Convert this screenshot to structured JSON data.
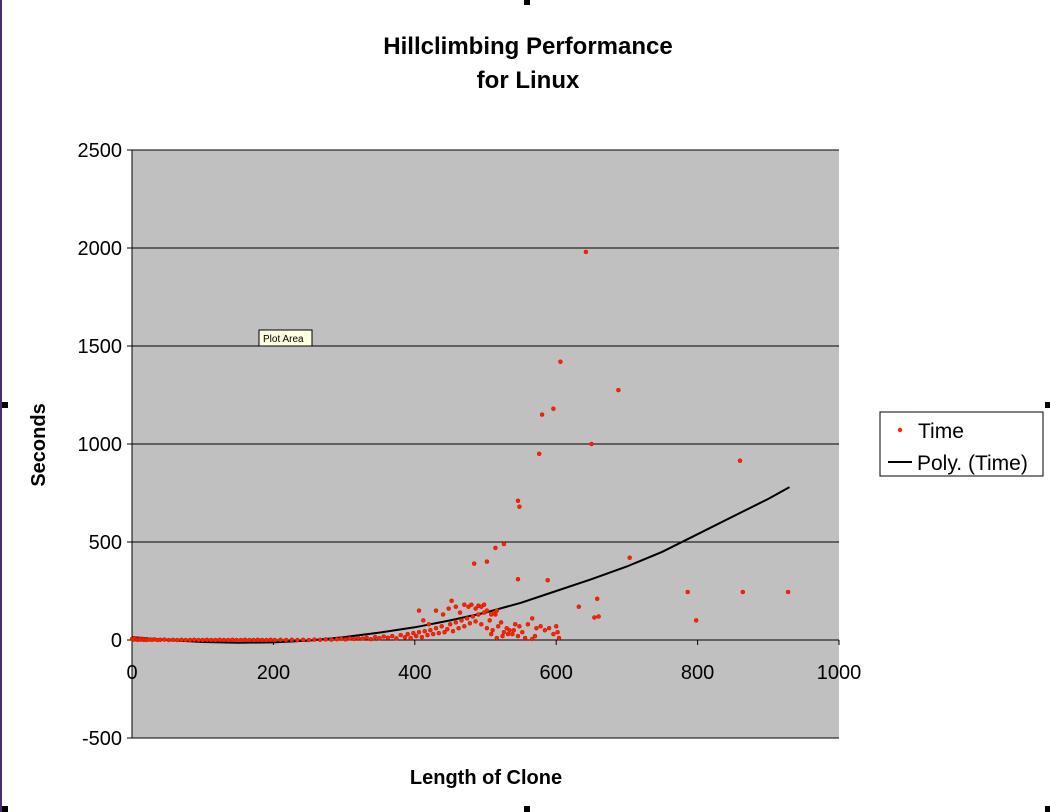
{
  "chart_data": {
    "type": "scatter",
    "title": [
      "Hillclimbing Performance",
      "for Linux"
    ],
    "xlabel": "Length of Clone",
    "ylabel": "Seconds",
    "xlim": [
      0,
      1000
    ],
    "ylim": [
      -500,
      2500
    ],
    "xticks": [
      "0",
      "200",
      "400",
      "600",
      "800",
      "1000"
    ],
    "yticks": [
      "-500",
      "0",
      "500",
      "1000",
      "1500",
      "2000",
      "2500"
    ],
    "grid": "horizontal",
    "plot_background": "#c0c0c0",
    "legend_position": "right",
    "tooltip": "Plot Area",
    "series": [
      {
        "name": "Time",
        "kind": "scatter",
        "color": "#ff2200",
        "points": [
          [
            0,
            5
          ],
          [
            2,
            2
          ],
          [
            4,
            8
          ],
          [
            6,
            3
          ],
          [
            8,
            1
          ],
          [
            10,
            4
          ],
          [
            12,
            2
          ],
          [
            14,
            6
          ],
          [
            16,
            1
          ],
          [
            18,
            3
          ],
          [
            20,
            0
          ],
          [
            24,
            2
          ],
          [
            28,
            1
          ],
          [
            32,
            3
          ],
          [
            36,
            0
          ],
          [
            40,
            1
          ],
          [
            46,
            2
          ],
          [
            52,
            0
          ],
          [
            58,
            1
          ],
          [
            64,
            0
          ],
          [
            70,
            1
          ],
          [
            76,
            0
          ],
          [
            82,
            0
          ],
          [
            88,
            1
          ],
          [
            94,
            0
          ],
          [
            100,
            0
          ],
          [
            106,
            1
          ],
          [
            112,
            0
          ],
          [
            118,
            0
          ],
          [
            124,
            1
          ],
          [
            130,
            0
          ],
          [
            136,
            0
          ],
          [
            142,
            1
          ],
          [
            148,
            0
          ],
          [
            154,
            0
          ],
          [
            160,
            1
          ],
          [
            166,
            0
          ],
          [
            172,
            0
          ],
          [
            178,
            1
          ],
          [
            184,
            0
          ],
          [
            190,
            0
          ],
          [
            196,
            1
          ],
          [
            202,
            0
          ],
          [
            210,
            1
          ],
          [
            218,
            0
          ],
          [
            226,
            1
          ],
          [
            234,
            0
          ],
          [
            242,
            1
          ],
          [
            250,
            0
          ],
          [
            258,
            2
          ],
          [
            266,
            1
          ],
          [
            274,
            3
          ],
          [
            282,
            2
          ],
          [
            290,
            4
          ],
          [
            296,
            6
          ],
          [
            302,
            3
          ],
          [
            308,
            8
          ],
          [
            314,
            5
          ],
          [
            320,
            10
          ],
          [
            326,
            7
          ],
          [
            332,
            12
          ],
          [
            338,
            4
          ],
          [
            344,
            15
          ],
          [
            350,
            9
          ],
          [
            356,
            18
          ],
          [
            362,
            11
          ],
          [
            368,
            20
          ],
          [
            374,
            8
          ],
          [
            380,
            25
          ],
          [
            386,
            14
          ],
          [
            390,
            30
          ],
          [
            394,
            10
          ],
          [
            398,
            35
          ],
          [
            402,
            20
          ],
          [
            406,
            40
          ],
          [
            410,
            15
          ],
          [
            414,
            45
          ],
          [
            418,
            25
          ],
          [
            422,
            50
          ],
          [
            426,
            30
          ],
          [
            430,
            60
          ],
          [
            434,
            35
          ],
          [
            438,
            70
          ],
          [
            442,
            40
          ],
          [
            446,
            55
          ],
          [
            450,
            80
          ],
          [
            454,
            45
          ],
          [
            458,
            90
          ],
          [
            462,
            60
          ],
          [
            466,
            100
          ],
          [
            470,
            70
          ],
          [
            474,
            110
          ],
          [
            478,
            85
          ],
          [
            482,
            120
          ],
          [
            486,
            95
          ],
          [
            490,
            130
          ],
          [
            494,
            80
          ],
          [
            498,
            140
          ],
          [
            502,
            60
          ],
          [
            506,
            100
          ],
          [
            510,
            50
          ],
          [
            514,
            130
          ],
          [
            518,
            70
          ],
          [
            522,
            90
          ],
          [
            526,
            40
          ],
          [
            530,
            60
          ],
          [
            534,
            50
          ],
          [
            538,
            30
          ],
          [
            542,
            80
          ],
          [
            546,
            20
          ],
          [
            406,
            150
          ],
          [
            412,
            100
          ],
          [
            420,
            80
          ],
          [
            430,
            150
          ],
          [
            440,
            130
          ],
          [
            448,
            160
          ],
          [
            452,
            200
          ],
          [
            458,
            170
          ],
          [
            464,
            140
          ],
          [
            470,
            180
          ],
          [
            476,
            170
          ],
          [
            480,
            180
          ],
          [
            486,
            160
          ],
          [
            490,
            175
          ],
          [
            494,
            170
          ],
          [
            498,
            180
          ],
          [
            502,
            150
          ],
          [
            508,
            130
          ],
          [
            512,
            140
          ],
          [
            516,
            150
          ],
          [
            484,
            390
          ],
          [
            502,
            400
          ],
          [
            514,
            470
          ],
          [
            526,
            490
          ],
          [
            546,
            310
          ],
          [
            546,
            710
          ],
          [
            548,
            680
          ],
          [
            576,
            950
          ],
          [
            580,
            1150
          ],
          [
            588,
            305
          ],
          [
            596,
            1180
          ],
          [
            606,
            1420
          ],
          [
            632,
            170
          ],
          [
            642,
            1980
          ],
          [
            650,
            1000
          ],
          [
            654,
            115
          ],
          [
            658,
            210
          ],
          [
            660,
            120
          ],
          [
            688,
            1275
          ],
          [
            704,
            420
          ],
          [
            786,
            245
          ],
          [
            798,
            100
          ],
          [
            860,
            915
          ],
          [
            864,
            245
          ],
          [
            928,
            245
          ],
          [
            560,
            80
          ],
          [
            566,
            110
          ],
          [
            572,
            60
          ],
          [
            578,
            70
          ],
          [
            584,
            50
          ],
          [
            590,
            60
          ],
          [
            596,
            30
          ],
          [
            600,
            70
          ],
          [
            602,
            40
          ],
          [
            604,
            10
          ],
          [
            570,
            20
          ],
          [
            566,
            5
          ],
          [
            552,
            40
          ],
          [
            556,
            10
          ],
          [
            548,
            70
          ],
          [
            540,
            50
          ],
          [
            532,
            30
          ],
          [
            524,
            20
          ],
          [
            516,
            10
          ],
          [
            508,
            30
          ]
        ]
      },
      {
        "name": "Poly. (Time)",
        "kind": "line",
        "color": "#000000",
        "points": [
          [
            0,
            15
          ],
          [
            50,
            0
          ],
          [
            100,
            -10
          ],
          [
            150,
            -14
          ],
          [
            200,
            -12
          ],
          [
            250,
            -3
          ],
          [
            300,
            15
          ],
          [
            350,
            38
          ],
          [
            400,
            65
          ],
          [
            450,
            100
          ],
          [
            500,
            140
          ],
          [
            550,
            190
          ],
          [
            600,
            250
          ],
          [
            650,
            310
          ],
          [
            700,
            375
          ],
          [
            750,
            450
          ],
          [
            800,
            540
          ],
          [
            850,
            630
          ],
          [
            900,
            720
          ],
          [
            930,
            780
          ]
        ]
      }
    ]
  }
}
